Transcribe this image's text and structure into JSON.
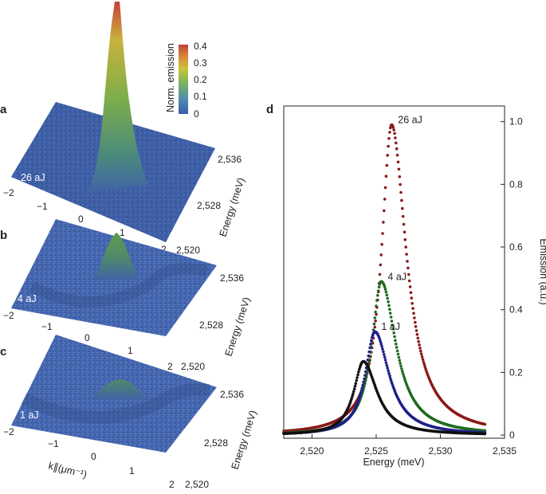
{
  "panel_a": {
    "label": "a",
    "pulse_energy": "26 aJ",
    "k_ticks": [
      "−2",
      "−1",
      "0",
      "1",
      "2"
    ],
    "energy_ticks": [
      "2,520",
      "2,528",
      "2,536"
    ],
    "energy_axis_label": "Energy (meV)",
    "colorbar": {
      "title": "Norm. emission",
      "ticks": [
        "0.4",
        "0.3",
        "0.2",
        "0.1",
        "0"
      ],
      "colors": [
        "#3a5ba8",
        "#4f8fae",
        "#7db45a",
        "#c9c43a",
        "#d98a3a",
        "#c0403a"
      ]
    }
  },
  "panel_b": {
    "label": "b",
    "pulse_energy": "4 aJ",
    "k_ticks": [
      "−2",
      "−1",
      "0",
      "1",
      "2"
    ],
    "energy_ticks": [
      "2,520",
      "2,528",
      "2,536"
    ],
    "energy_axis_label": "Energy (meV)"
  },
  "panel_c": {
    "label": "c",
    "pulse_energy": "1 aJ",
    "k_ticks": [
      "−2",
      "−1",
      "0",
      "1",
      "2"
    ],
    "energy_ticks": [
      "2,520",
      "2,528",
      "2,536"
    ],
    "energy_axis_label": "Energy (meV)",
    "k_axis_label": "k∥(μm⁻¹)"
  },
  "chart_data": {
    "type": "scatter",
    "panel_label": "d",
    "title": "",
    "xlabel": "Energy (meV)",
    "ylabel": "Emission (a.u.)",
    "xlim": [
      2517.8,
      2535
    ],
    "ylim": [
      -0.01,
      1.05
    ],
    "x_ticks": [
      "2,520",
      "2,525",
      "2,530",
      "2,535"
    ],
    "x_tick_values": [
      2520,
      2525,
      2530,
      2535
    ],
    "y_ticks": [
      "0",
      "0.2",
      "0.4",
      "0.6",
      "0.8",
      "1.0"
    ],
    "y_tick_values": [
      0,
      0.2,
      0.4,
      0.6,
      0.8,
      1.0
    ],
    "y_axis_side": "right",
    "series": [
      {
        "name": "26 aJ",
        "color": "#8b1a1a",
        "peak_x": 2526.2,
        "peak_y": 0.99,
        "width_left": 1.0,
        "width_right": 1.45
      },
      {
        "name": "4 aJ",
        "color": "#1f6b1f",
        "peak_x": 2525.4,
        "peak_y": 0.49,
        "width_left": 0.95,
        "width_right": 1.45
      },
      {
        "name": "1 aJ",
        "color": "#1f1f8b",
        "peak_x": 2524.9,
        "peak_y": 0.33,
        "width_left": 0.95,
        "width_right": 1.4
      },
      {
        "name": "",
        "color": "#111111",
        "peak_x": 2524.0,
        "peak_y": 0.235,
        "width_left": 0.95,
        "width_right": 1.35
      }
    ]
  }
}
